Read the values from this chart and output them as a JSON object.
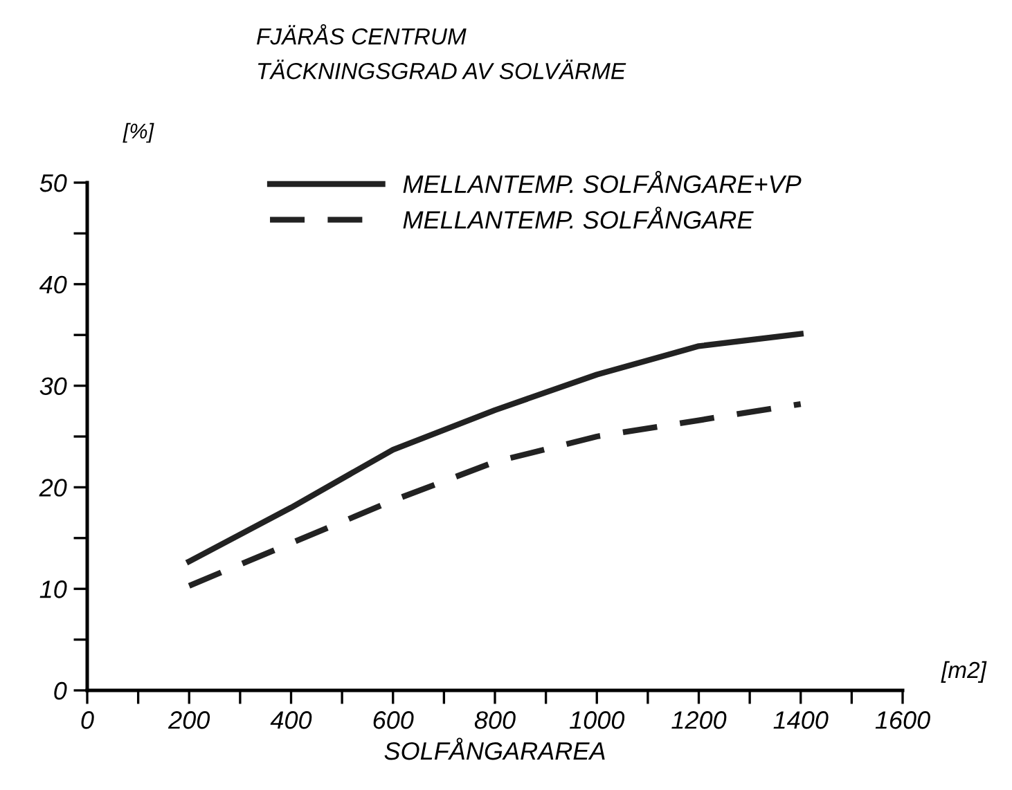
{
  "chart_data": {
    "type": "line",
    "title": "FJÄRÅS CENTRUM",
    "subtitle": "TÄCKNINGSGRAD AV SOLVÄRME",
    "xlabel": "SOLFÅNGARAREA",
    "ylabel": "[%]",
    "annotations": [
      "[m2]"
    ],
    "x": [
      200,
      400,
      600,
      800,
      1000,
      1200,
      1400
    ],
    "series": [
      {
        "name": "MELLANTEMP. SOLFÅNGARE+VP",
        "color": "#222222",
        "line_style": "solid",
        "values": [
          12.7,
          18.0,
          23.7,
          27.6,
          31.1,
          33.9,
          35.1
        ]
      },
      {
        "name": "MELLANTEMP. SOLFÅNGARE",
        "color": "#222222",
        "line_style": "dashed",
        "values": [
          10.3,
          14.5,
          18.7,
          22.5,
          25.0,
          26.6,
          28.2
        ]
      }
    ],
    "xlim": [
      0,
      1600
    ],
    "ylim": [
      0,
      50
    ],
    "xticks": [
      0,
      {
        "value": 100,
        "label": null
      },
      200,
      {
        "value": 300,
        "label": null
      },
      400,
      {
        "value": 500,
        "label": null
      },
      600,
      {
        "value": 700,
        "label": null
      },
      800,
      {
        "value": 900,
        "label": null
      },
      1000,
      {
        "value": 1100,
        "label": null
      },
      1200,
      {
        "value": 1300,
        "label": null
      },
      1400,
      {
        "value": 1500,
        "label": null
      },
      1600
    ],
    "yticks": [
      0,
      {
        "value": 5,
        "label": null
      },
      10,
      {
        "value": 15,
        "label": null
      },
      20,
      {
        "value": 25,
        "label": null
      },
      30,
      {
        "value": 35,
        "label": null
      },
      40,
      {
        "value": 45,
        "label": null
      },
      50
    ],
    "grid": false,
    "legend": "top",
    "marker": "none"
  }
}
